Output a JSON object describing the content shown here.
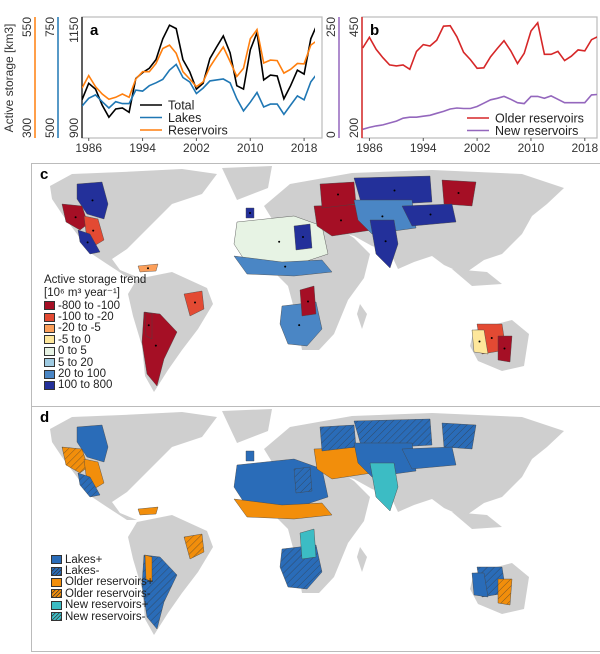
{
  "chart_data": [
    {
      "type": "line",
      "panel_label": "a",
      "ylabel": "Active storage [km3]",
      "x": [
        1985,
        1986,
        1987,
        1988,
        1989,
        1990,
        1991,
        1992,
        1993,
        1994,
        1995,
        1996,
        1997,
        1998,
        1999,
        2000,
        2001,
        2002,
        2003,
        2004,
        2005,
        2006,
        2007,
        2008,
        2009,
        2010,
        2011,
        2012,
        2013,
        2014,
        2015,
        2016,
        2017,
        2018,
        2019,
        2020
      ],
      "xticks": [
        "1986",
        "1994",
        "2002",
        "2010",
        "2018"
      ],
      "axes": [
        {
          "series": "Total",
          "ylim": [
            900,
            1150
          ],
          "ticks": [
            "1150",
            "900"
          ],
          "color": "#000000"
        },
        {
          "series": "Lakes",
          "ylim": [
            500,
            750
          ],
          "ticks": [
            "750",
            "500"
          ],
          "color": "#1f77b4"
        },
        {
          "series": "Reservoirs",
          "ylim": [
            300,
            550
          ],
          "ticks": [
            "550",
            "300"
          ],
          "color": "#ff7f0e"
        }
      ],
      "series": [
        {
          "name": "Total",
          "color": "#000000",
          "values": [
            979,
            1013,
            1001,
            968,
            943,
            960,
            962,
            953,
            1023,
            1035,
            1044,
            1062,
            1105,
            1133,
            1126,
            1062,
            1037,
            1001,
            1013,
            1064,
            1088,
            1111,
            1076,
            1008,
            1001,
            1082,
            1118,
            1020,
            1030,
            1028,
            981,
            1008,
            1040,
            1032,
            1105,
            1137
          ]
        },
        {
          "name": "Lakes",
          "color": "#1f77b4",
          "values": [
            566,
            582,
            589,
            575,
            562,
            575,
            571,
            571,
            599,
            597,
            608,
            614,
            621,
            640,
            652,
            625,
            616,
            592,
            603,
            618,
            620,
            622,
            614,
            581,
            556,
            574,
            594,
            564,
            570,
            570,
            549,
            568,
            587,
            579,
            616,
            634
          ]
        },
        {
          "name": "Reservoirs",
          "color": "#ff7f0e",
          "values": [
            403,
            429,
            406,
            391,
            380,
            384,
            391,
            384,
            422,
            437,
            437,
            454,
            485,
            492,
            475,
            437,
            422,
            406,
            416,
            447,
            468,
            488,
            458,
            427,
            444,
            505,
            524,
            455,
            461,
            460,
            434,
            442,
            454,
            453,
            492,
            502
          ]
        }
      ],
      "legend_position": "bottom-center"
    },
    {
      "type": "line",
      "panel_label": "b",
      "x": [
        1985,
        1986,
        1987,
        1988,
        1989,
        1990,
        1991,
        1992,
        1993,
        1994,
        1995,
        1996,
        1997,
        1998,
        1999,
        2000,
        2001,
        2002,
        2003,
        2004,
        2005,
        2006,
        2007,
        2008,
        2009,
        2010,
        2011,
        2012,
        2013,
        2014,
        2015,
        2016,
        2017,
        2018,
        2019,
        2020
      ],
      "xticks": [
        "1986",
        "1994",
        "2002",
        "2010",
        "2018"
      ],
      "axes": [
        {
          "series": "New reservoirs",
          "ylim": [
            0,
            250
          ],
          "ticks": [
            "250",
            "0"
          ],
          "color": "#9467bd"
        },
        {
          "series": "Older reservoirs",
          "ylim": [
            200,
            450
          ],
          "ticks": [
            "450",
            "200"
          ],
          "color": "#d62728"
        }
      ],
      "series": [
        {
          "name": "Older reservoirs",
          "color": "#d62728",
          "values": [
            386,
            408,
            383,
            366,
            351,
            349,
            351,
            342,
            379,
            393,
            390,
            402,
            431,
            432,
            409,
            377,
            362,
            344,
            345,
            368,
            385,
            401,
            380,
            354,
            375,
            421,
            438,
            373,
            373,
            379,
            360,
            369,
            382,
            380,
            403,
            410
          ]
        },
        {
          "name": "New reservoirs",
          "color": "#9467bd",
          "values": [
            18,
            22,
            25,
            27,
            31,
            35,
            41,
            43,
            43,
            45,
            47,
            51,
            55,
            60,
            62,
            61,
            61,
            65,
            72,
            79,
            82,
            86,
            80,
            73,
            71,
            86,
            86,
            82,
            87,
            80,
            73,
            73,
            73,
            73,
            89,
            90
          ]
        }
      ],
      "legend_position": "bottom-right"
    }
  ],
  "map_c": {
    "panel_label": "c",
    "legend_title_1": "Active storage trend",
    "legend_title_2": "[10⁶ m³ year⁻¹]",
    "classes": [
      {
        "label": "-800 to -100",
        "color": "#a50f25"
      },
      {
        "label": "-100 to -20",
        "color": "#e34a33"
      },
      {
        "label": "-20 to -5",
        "color": "#fc9f5a"
      },
      {
        "label": "-5 to 0",
        "color": "#fee79b"
      },
      {
        "label": "0 to 5",
        "color": "#e7f3e4"
      },
      {
        "label": "5 to 20",
        "color": "#9ecae1"
      },
      {
        "label": "20 to 100",
        "color": "#4a86c5"
      },
      {
        "label": "100 to 800",
        "color": "#23309a"
      }
    ]
  },
  "map_d": {
    "panel_label": "d",
    "classes": [
      {
        "label": "Lakes+",
        "color": "#2a6cb8",
        "hatched": false
      },
      {
        "label": "Lakes-",
        "color": "#2a6cb8",
        "hatched": true
      },
      {
        "label": "Older reservoirs+",
        "color": "#f28e0b",
        "hatched": false
      },
      {
        "label": "Older reservoirs-",
        "color": "#f28e0b",
        "hatched": true
      },
      {
        "label": "New reservoirs+",
        "color": "#3cbcc4",
        "hatched": false
      },
      {
        "label": "New reservoirs-",
        "color": "#3cbcc4",
        "hatched": true
      }
    ]
  }
}
